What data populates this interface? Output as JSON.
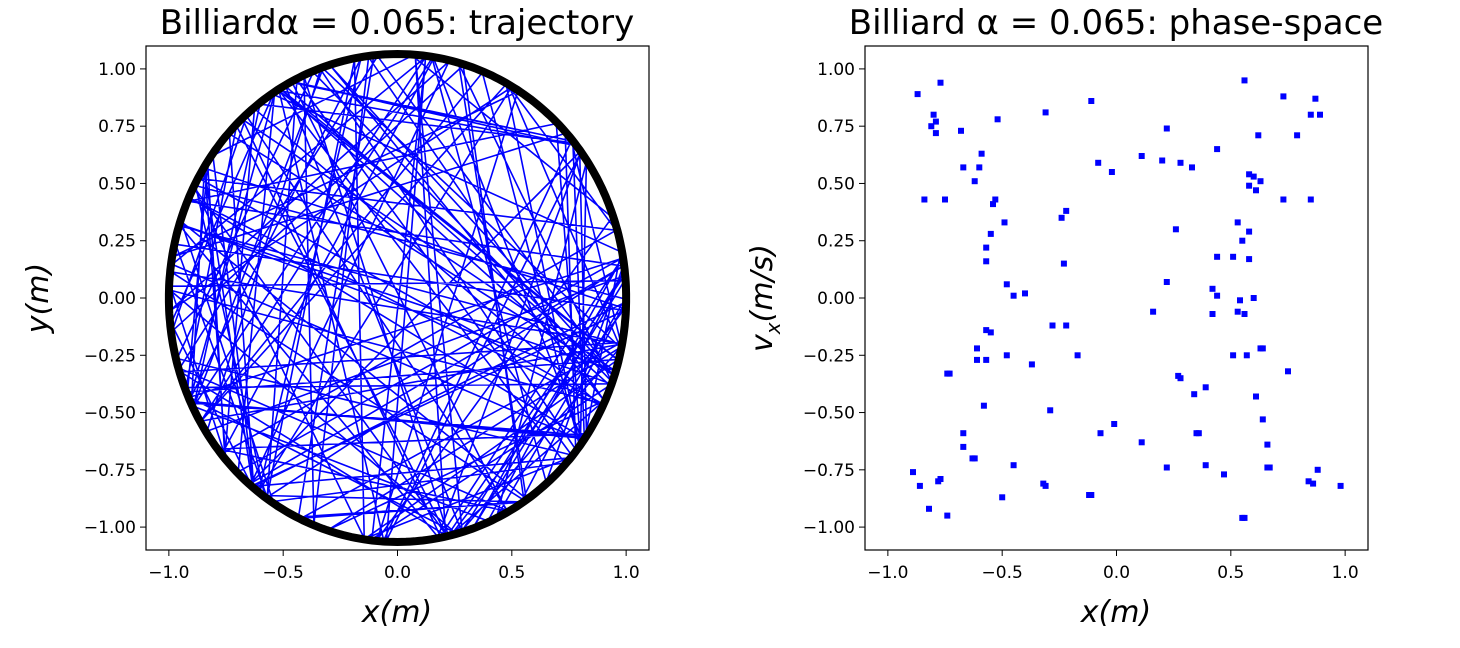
{
  "chart_data": [
    {
      "type": "line",
      "title": "Billiardα = 0.065: trajectory",
      "xlabel": "x(m)",
      "ylabel": "y(m)",
      "xlim": [
        -1.1,
        1.1
      ],
      "ylim": [
        -1.1,
        1.1
      ],
      "xticks": [
        "−1.0",
        "−0.5",
        "0.0",
        "0.5",
        "1.0"
      ],
      "xtick_values": [
        -1.0,
        -0.5,
        0.0,
        0.5,
        1.0
      ],
      "yticks": [
        "−1.00",
        "−0.75",
        "−0.50",
        "−0.25",
        "0.00",
        "0.25",
        "0.50",
        "0.75",
        "1.00"
      ],
      "ytick_values": [
        -1.0,
        -0.75,
        -0.5,
        -0.25,
        0.0,
        0.25,
        0.5,
        0.75,
        1.0
      ],
      "grid": false,
      "series": [
        {
          "color": "#0000ff",
          "description": "chaotic trajectory bouncing inside boundary",
          "bounces": 170,
          "alpha": 0.065
        },
        {
          "color": "#000000",
          "description": "stadium-like boundary",
          "alpha": 0.065
        }
      ]
    },
    {
      "type": "scatter",
      "title": "Billiard α = 0.065: phase-space",
      "xlabel": "x(m)",
      "ylabel": "v_x(m/s)",
      "xlim": [
        -1.1,
        1.1
      ],
      "ylim": [
        -1.1,
        1.1
      ],
      "xticks": [
        "−1.0",
        "−0.5",
        "0.0",
        "0.5",
        "1.0"
      ],
      "xtick_values": [
        -1.0,
        -0.5,
        0.0,
        0.5,
        1.0
      ],
      "yticks": [
        "−1.00",
        "−0.75",
        "−0.50",
        "−0.25",
        "0.00",
        "0.25",
        "0.50",
        "0.75",
        "1.00"
      ],
      "ytick_values": [
        -1.0,
        -0.75,
        -0.5,
        -0.25,
        0.0,
        0.25,
        0.5,
        0.75,
        1.0
      ],
      "grid": false,
      "series": [
        {
          "color": "#0000ff",
          "points": [
            [
              -0.87,
              0.89
            ],
            [
              -0.77,
              0.94
            ],
            [
              -0.8,
              0.8
            ],
            [
              -0.79,
              0.77
            ],
            [
              -0.81,
              0.75
            ],
            [
              -0.79,
              0.72
            ],
            [
              -0.68,
              0.73
            ],
            [
              -0.84,
              0.43
            ],
            [
              -0.75,
              0.43
            ],
            [
              -0.67,
              0.57
            ],
            [
              -0.62,
              0.51
            ],
            [
              -0.6,
              0.57
            ],
            [
              -0.59,
              0.63
            ],
            [
              -0.53,
              0.43
            ],
            [
              -0.54,
              0.41
            ],
            [
              -0.49,
              0.33
            ],
            [
              -0.57,
              0.22
            ],
            [
              -0.55,
              0.28
            ],
            [
              -0.57,
              0.16
            ],
            [
              -0.52,
              0.78
            ],
            [
              -0.31,
              0.81
            ],
            [
              -0.11,
              0.86
            ],
            [
              -0.08,
              0.59
            ],
            [
              -0.02,
              0.55
            ],
            [
              0.11,
              0.62
            ],
            [
              0.22,
              0.74
            ],
            [
              0.2,
              0.6
            ],
            [
              0.28,
              0.59
            ],
            [
              0.33,
              0.57
            ],
            [
              0.44,
              0.65
            ],
            [
              0.56,
              0.95
            ],
            [
              0.73,
              0.88
            ],
            [
              0.87,
              0.87
            ],
            [
              0.89,
              0.8
            ],
            [
              0.85,
              0.8
            ],
            [
              0.79,
              0.71
            ],
            [
              0.62,
              0.71
            ],
            [
              0.58,
              0.54
            ],
            [
              0.6,
              0.53
            ],
            [
              0.63,
              0.51
            ],
            [
              0.58,
              0.49
            ],
            [
              0.61,
              0.47
            ],
            [
              0.73,
              0.43
            ],
            [
              0.85,
              0.43
            ],
            [
              -0.22,
              0.38
            ],
            [
              -0.24,
              0.35
            ],
            [
              -0.23,
              0.15
            ],
            [
              0.26,
              0.3
            ],
            [
              0.53,
              0.33
            ],
            [
              0.58,
              0.29
            ],
            [
              0.55,
              0.25
            ],
            [
              0.44,
              0.18
            ],
            [
              0.51,
              0.18
            ],
            [
              0.58,
              0.17
            ],
            [
              0.22,
              0.07
            ],
            [
              0.42,
              0.04
            ],
            [
              0.44,
              0.01
            ],
            [
              0.54,
              -0.01
            ],
            [
              0.6,
              0.0
            ],
            [
              0.53,
              -0.06
            ],
            [
              0.56,
              -0.07
            ],
            [
              0.42,
              -0.07
            ],
            [
              0.16,
              -0.06
            ],
            [
              -0.48,
              0.06
            ],
            [
              -0.45,
              0.01
            ],
            [
              -0.4,
              0.02
            ],
            [
              -0.55,
              -0.15
            ],
            [
              -0.57,
              -0.14
            ],
            [
              -0.28,
              -0.12
            ],
            [
              -0.22,
              -0.12
            ],
            [
              -0.17,
              -0.25
            ],
            [
              -0.48,
              -0.25
            ],
            [
              -0.37,
              -0.29
            ],
            [
              -0.61,
              -0.22
            ],
            [
              -0.61,
              -0.27
            ],
            [
              -0.57,
              -0.27
            ],
            [
              -0.74,
              -0.33
            ],
            [
              -0.73,
              -0.33
            ],
            [
              0.51,
              -0.25
            ],
            [
              0.57,
              -0.25
            ],
            [
              0.63,
              -0.22
            ],
            [
              0.64,
              -0.22
            ],
            [
              0.75,
              -0.32
            ],
            [
              0.27,
              -0.34
            ],
            [
              0.28,
              -0.35
            ],
            [
              0.39,
              -0.39
            ],
            [
              0.34,
              -0.42
            ],
            [
              0.61,
              -0.43
            ],
            [
              -0.58,
              -0.47
            ],
            [
              -0.29,
              -0.49
            ],
            [
              0.64,
              -0.53
            ],
            [
              -0.01,
              -0.55
            ],
            [
              -0.07,
              -0.59
            ],
            [
              0.35,
              -0.59
            ],
            [
              0.36,
              -0.59
            ],
            [
              0.11,
              -0.63
            ],
            [
              0.66,
              -0.64
            ],
            [
              -0.67,
              -0.59
            ],
            [
              -0.67,
              -0.65
            ],
            [
              -0.63,
              -0.7
            ],
            [
              -0.62,
              -0.7
            ],
            [
              -0.45,
              -0.73
            ],
            [
              0.22,
              -0.74
            ],
            [
              0.39,
              -0.73
            ],
            [
              0.47,
              -0.77
            ],
            [
              0.66,
              -0.74
            ],
            [
              0.67,
              -0.74
            ],
            [
              0.88,
              -0.75
            ],
            [
              0.84,
              -0.8
            ],
            [
              0.86,
              -0.81
            ],
            [
              0.98,
              -0.82
            ],
            [
              -0.89,
              -0.76
            ],
            [
              -0.86,
              -0.82
            ],
            [
              -0.78,
              -0.8
            ],
            [
              -0.77,
              -0.79
            ],
            [
              -0.82,
              -0.92
            ],
            [
              -0.74,
              -0.95
            ],
            [
              -0.5,
              -0.87
            ],
            [
              -0.32,
              -0.81
            ],
            [
              -0.31,
              -0.82
            ],
            [
              -0.11,
              -0.86
            ],
            [
              -0.12,
              -0.86
            ],
            [
              0.55,
              -0.96
            ],
            [
              0.56,
              -0.96
            ]
          ]
        }
      ]
    }
  ]
}
